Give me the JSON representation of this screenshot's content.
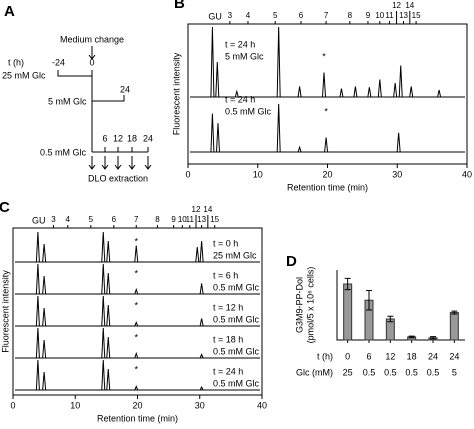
{
  "panel_a": {
    "label": "A",
    "medium_change": "Medium change",
    "t_label": "t (h)",
    "t_start": "-24",
    "t_zero": "0",
    "row1": "25 mM Glc",
    "row2": "5 mM Glc",
    "row2_end": "24",
    "row3": "0.5 mM Glc",
    "row3_times": [
      "6",
      "12",
      "18",
      "24"
    ],
    "extraction": "DLO extraction"
  },
  "panel_b": {
    "label": "B",
    "x_label": "Retention time (min)",
    "y_label": "Fluorescent intensity",
    "xlim": [
      0,
      40
    ],
    "xticks": [
      0,
      10,
      20,
      30,
      40
    ],
    "gu_label": "GU",
    "gu_ticks": [
      {
        "value": 6,
        "label": "3"
      },
      {
        "value": 8.6,
        "label": "4"
      },
      {
        "value": 12.5,
        "label": "5"
      },
      {
        "value": 16.2,
        "label": "6"
      },
      {
        "value": 19.8,
        "label": "7"
      },
      {
        "value": 23.2,
        "label": "8"
      },
      {
        "value": 25.8,
        "label": "9"
      },
      {
        "value": 27.5,
        "label": "10"
      },
      {
        "value": 28.9,
        "label": "11"
      },
      {
        "value": 29.9,
        "label": "12"
      },
      {
        "value": 30.9,
        "label": "13"
      },
      {
        "value": 31.8,
        "label": "14"
      },
      {
        "value": 32.7,
        "label": "15"
      }
    ],
    "traces": [
      {
        "labels": [
          "t = 24 h",
          "5 mM Glc"
        ],
        "peaks": [
          [
            3.5,
            100
          ],
          [
            4.2,
            50
          ],
          [
            7,
            8
          ],
          [
            13,
            100
          ],
          [
            16,
            15
          ],
          [
            19.5,
            35
          ],
          [
            22,
            12
          ],
          [
            24,
            15
          ],
          [
            26,
            14
          ],
          [
            27.5,
            25
          ],
          [
            29.7,
            20
          ],
          [
            30.5,
            45
          ],
          [
            32,
            15
          ],
          [
            36,
            10
          ]
        ],
        "asterisk": {
          "text": "*",
          "x": 19.5
        }
      },
      {
        "labels": [
          "t = 24 h",
          "0.5 mM Glc"
        ],
        "peaks": [
          [
            3.5,
            80
          ],
          [
            4.3,
            60
          ],
          [
            13,
            100
          ],
          [
            16,
            10
          ],
          [
            19.8,
            30
          ],
          [
            30.2,
            40
          ]
        ],
        "asterisk": {
          "text": "*",
          "x": 19.8
        }
      }
    ]
  },
  "panel_c": {
    "label": "C",
    "x_label": "Retention time (min)",
    "y_label": "Fluorescent intensity",
    "xlim": [
      0,
      40
    ],
    "xticks": [
      0,
      10,
      20,
      30,
      40
    ],
    "gu_label": "GU",
    "gu_ticks": [
      {
        "value": 6.5,
        "label": "3"
      },
      {
        "value": 8.8,
        "label": "4"
      },
      {
        "value": 12.5,
        "label": "5"
      },
      {
        "value": 16.2,
        "label": "6"
      },
      {
        "value": 19.8,
        "label": "7"
      },
      {
        "value": 23.2,
        "label": "8"
      },
      {
        "value": 25.8,
        "label": "9"
      },
      {
        "value": 27.2,
        "label": "10"
      },
      {
        "value": 28.4,
        "label": "11"
      },
      {
        "value": 29.4,
        "label": "12"
      },
      {
        "value": 30.3,
        "label": "13"
      },
      {
        "value": 31.3,
        "label": "14"
      },
      {
        "value": 32.4,
        "label": "15"
      }
    ],
    "traces": [
      {
        "labels": [
          "t = 0 h",
          "25 mM Glc"
        ],
        "peaks": [
          [
            4,
            100
          ],
          [
            5,
            60
          ],
          [
            14.5,
            100
          ],
          [
            15.3,
            70
          ],
          [
            19.8,
            55
          ],
          [
            29.6,
            50
          ],
          [
            30.3,
            70
          ]
        ],
        "asterisk": {
          "text": "*",
          "x": 19.8
        }
      },
      {
        "labels": [
          "t = 6 h",
          "0.5 mM Glc"
        ],
        "peaks": [
          [
            4,
            100
          ],
          [
            5,
            60
          ],
          [
            14.5,
            100
          ],
          [
            15.3,
            70
          ],
          [
            19.8,
            15
          ],
          [
            30.3,
            35
          ]
        ],
        "asterisk": {
          "text": "*",
          "x": 19.8
        }
      },
      {
        "labels": [
          "t = 12 h",
          "0.5 mM Glc"
        ],
        "peaks": [
          [
            4,
            100
          ],
          [
            5,
            60
          ],
          [
            14.5,
            100
          ],
          [
            15.3,
            70
          ],
          [
            19.8,
            12
          ],
          [
            30.3,
            25
          ]
        ],
        "asterisk": {
          "text": "*",
          "x": 19.8
        }
      },
      {
        "labels": [
          "t = 18 h",
          "0.5 mM Glc"
        ],
        "peaks": [
          [
            4,
            100
          ],
          [
            5,
            60
          ],
          [
            14.5,
            100
          ],
          [
            15.3,
            70
          ],
          [
            19.8,
            15
          ],
          [
            30.3,
            12
          ]
        ],
        "asterisk": {
          "text": "*",
          "x": 19.8
        }
      },
      {
        "labels": [
          "t = 24 h",
          "0.5 mM Glc"
        ],
        "peaks": [
          [
            4,
            100
          ],
          [
            5,
            60
          ],
          [
            14.5,
            100
          ],
          [
            15.3,
            70
          ],
          [
            19.8,
            12
          ],
          [
            30.3,
            10
          ]
        ],
        "asterisk": {
          "text": "*",
          "x": 19.8
        }
      }
    ]
  },
  "chart_data": {
    "type": "bar",
    "label": "D",
    "y_label": [
      "G3M9-PP-Dol",
      "(pmol/5 x 10⁶ cells)"
    ],
    "row_labels": [
      "t (h)",
      "Glc (mM)"
    ],
    "categories": [
      "0",
      "6",
      "12",
      "18",
      "24",
      "24"
    ],
    "categories2": [
      "25",
      "0.5",
      "0.5",
      "0.5",
      "0.5",
      "5"
    ],
    "values": [
      20,
      14.2,
      7.5,
      1.1,
      0.8,
      9.8
    ],
    "errors": [
      2,
      3.5,
      1,
      0.3,
      0.4,
      0.5
    ],
    "color": "#999999",
    "ylim": [
      0,
      25
    ]
  }
}
